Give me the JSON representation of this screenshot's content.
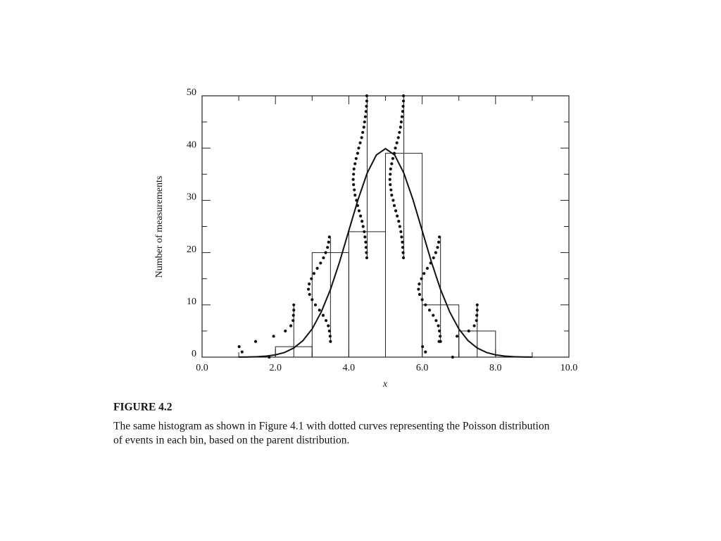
{
  "chart_data": {
    "type": "histogram",
    "xlabel": "x",
    "ylabel": "Number of measurements",
    "bins": [
      2,
      3,
      4,
      5,
      6,
      7,
      8
    ],
    "counts": [
      2,
      20,
      24,
      39,
      10,
      5
    ],
    "xlim": [
      0,
      10
    ],
    "ylim": [
      0,
      50
    ],
    "xticks": [
      {
        "value": 0,
        "label": "0.0"
      },
      {
        "value": 2,
        "label": "2.0"
      },
      {
        "value": 4,
        "label": "4.0"
      },
      {
        "value": 6,
        "label": "6.0"
      },
      {
        "value": 8,
        "label": "8.0"
      },
      {
        "value": 10,
        "label": "10.0"
      }
    ],
    "xticks_minor": [
      1,
      3,
      5,
      7,
      9
    ],
    "yticks": [
      0,
      10,
      20,
      30,
      40,
      50
    ],
    "yticks_minor": [
      5,
      15,
      25,
      35,
      45
    ],
    "curve": {
      "x": [
        1.0,
        1.25,
        1.5,
        1.75,
        2.0,
        2.25,
        2.5,
        2.75,
        3.0,
        3.25,
        3.5,
        3.75,
        4.0,
        4.25,
        4.5,
        4.75,
        5.0,
        5.25,
        5.5,
        5.75,
        6.0,
        6.25,
        6.5,
        6.75,
        7.0,
        7.25,
        7.5,
        7.75,
        8.0,
        8.25,
        8.5,
        8.75,
        9.0
      ],
      "values": [
        0.01,
        0.04,
        0.09,
        0.2,
        0.44,
        0.9,
        1.75,
        3.16,
        5.4,
        8.67,
        12.95,
        18.26,
        24.2,
        30.11,
        35.21,
        38.67,
        39.89,
        38.67,
        35.21,
        30.11,
        24.2,
        18.26,
        12.95,
        8.67,
        5.4,
        3.16,
        1.75,
        0.9,
        0.44,
        0.2,
        0.09,
        0.04,
        0.01
      ]
    },
    "poisson": [
      {
        "center": 2.5,
        "values": [
          0,
          1,
          2,
          3,
          4,
          5,
          6,
          7,
          8,
          9,
          10
        ],
        "x": [
          1.83,
          1.09,
          1.01,
          1.46,
          1.95,
          2.27,
          2.42,
          2.48,
          2.49,
          2.5,
          2.5
        ]
      },
      {
        "center": 3.5,
        "values": [
          3,
          4,
          5,
          6,
          7,
          8,
          9,
          10,
          11,
          12,
          13,
          14,
          15,
          16,
          17,
          18,
          19,
          20,
          21,
          22,
          23
        ],
        "x": [
          3.5,
          3.49,
          3.47,
          3.44,
          3.38,
          3.3,
          3.2,
          3.09,
          3.0,
          2.93,
          2.9,
          2.92,
          2.98,
          3.05,
          3.14,
          3.23,
          3.31,
          3.37,
          3.42,
          3.45,
          3.47
        ]
      },
      {
        "center": 4.5,
        "values": [
          19,
          20,
          21,
          22,
          23,
          24,
          25,
          26,
          27,
          28,
          29,
          30,
          31,
          32,
          33,
          34,
          35,
          36,
          37,
          38,
          39,
          40,
          41,
          42,
          43,
          44,
          45,
          46,
          47,
          48,
          49,
          50
        ],
        "x": [
          4.49,
          4.48,
          4.47,
          4.46,
          4.44,
          4.42,
          4.39,
          4.36,
          4.32,
          4.28,
          4.24,
          4.21,
          4.17,
          4.15,
          4.13,
          4.12,
          4.13,
          4.14,
          4.17,
          4.2,
          4.24,
          4.27,
          4.31,
          4.35,
          4.38,
          4.41,
          4.43,
          4.45,
          4.47,
          4.48,
          4.49,
          4.49
        ]
      },
      {
        "center": 5.5,
        "values": [
          19,
          20,
          21,
          22,
          23,
          24,
          25,
          26,
          27,
          28,
          29,
          30,
          31,
          32,
          33,
          34,
          35,
          36,
          37,
          38,
          39,
          40,
          41,
          42,
          43,
          44,
          45,
          46,
          47,
          48,
          49,
          50
        ],
        "x": [
          5.49,
          5.48,
          5.47,
          5.46,
          5.44,
          5.42,
          5.39,
          5.36,
          5.32,
          5.28,
          5.24,
          5.21,
          5.17,
          5.15,
          5.13,
          5.12,
          5.13,
          5.14,
          5.17,
          5.2,
          5.24,
          5.27,
          5.31,
          5.35,
          5.38,
          5.41,
          5.43,
          5.45,
          5.47,
          5.48,
          5.49,
          5.49
        ]
      },
      {
        "center": 6.5,
        "values": [
          3,
          4,
          5,
          6,
          7,
          8,
          9,
          10,
          11,
          12,
          13,
          14,
          15,
          16,
          17,
          18,
          19,
          20,
          21,
          22,
          23
        ],
        "x": [
          6.5,
          6.49,
          6.47,
          6.44,
          6.38,
          6.3,
          6.2,
          6.09,
          6.0,
          5.93,
          5.9,
          5.92,
          5.98,
          6.05,
          6.14,
          6.23,
          6.31,
          6.37,
          6.42,
          6.45,
          6.47
        ]
      },
      {
        "center": 7.5,
        "values": [
          0,
          1,
          2,
          3,
          4,
          5,
          6,
          7,
          8,
          9,
          10
        ],
        "x": [
          6.83,
          6.09,
          6.01,
          6.46,
          6.95,
          7.27,
          7.42,
          7.48,
          7.49,
          7.5,
          7.5
        ]
      }
    ]
  },
  "caption": {
    "label": "FIGURE 4.2",
    "lines": [
      "The same histogram as shown in Figure 4.1 with dotted curves representing the Poisson distribution",
      "of events in each bin, based on the parent distribution."
    ]
  }
}
